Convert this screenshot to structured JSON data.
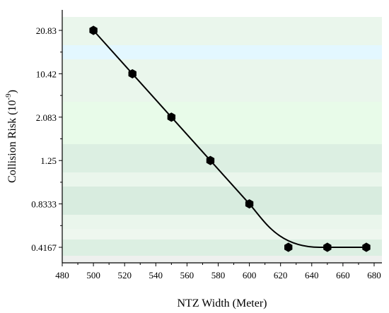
{
  "chart_data": {
    "type": "line",
    "title": "",
    "xlabel": "NTZ Width (Meter)",
    "ylabel": "Collision Risk (10",
    "ylabel_exponent": "-9",
    "ylabel_close": ")",
    "x": [
      500,
      525,
      550,
      575,
      600,
      625,
      650,
      675
    ],
    "y_ticks": [
      "0.4167",
      "0.8333",
      "1.25",
      "2.083",
      "10.42",
      "20.83"
    ],
    "y": [
      "20.83",
      "10.42",
      "2.083",
      "1.25",
      "0.8333",
      "0.4167",
      "0.4167",
      "0.4167"
    ],
    "x_ticks": [
      480,
      500,
      520,
      540,
      560,
      580,
      600,
      620,
      640,
      660,
      680
    ],
    "xlim": [
      480,
      685
    ],
    "y_scale": "categorical (equally spaced tick values)",
    "marker": "hexagon",
    "line_style": "smooth curve",
    "grid": false,
    "legend": "none",
    "colors": {
      "line": "#000000",
      "marker": "#000000",
      "bands": [
        "#eaf6ec",
        "#dcefe2",
        "#e8fbe9",
        "#e3f7ff",
        "#d8ecdf",
        "#eef0ee"
      ]
    }
  }
}
